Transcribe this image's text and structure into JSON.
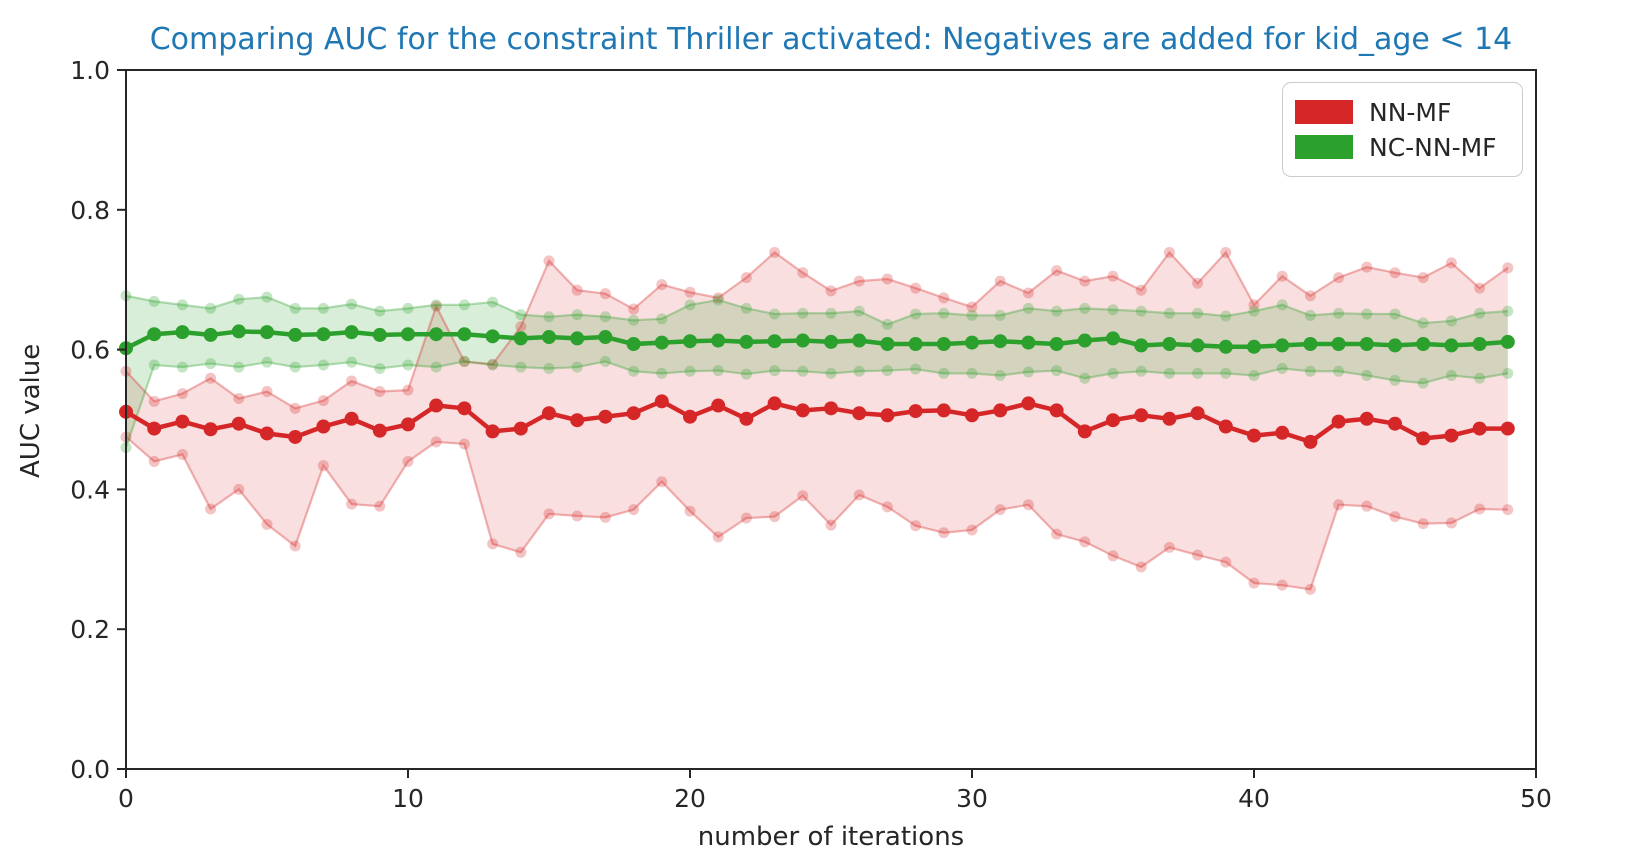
{
  "chart_data": {
    "type": "line",
    "title": "Comparing AUC for the constraint Thriller activated: Negatives are added for kid_age < 14",
    "title_color": "#1f77b4",
    "xlabel": "number of iterations",
    "ylabel": "AUC value",
    "xlim": [
      0,
      50
    ],
    "ylim": [
      0.0,
      1.0
    ],
    "xticks": [
      0,
      10,
      20,
      30,
      40,
      50
    ],
    "yticks": [
      0.0,
      0.2,
      0.4,
      0.6,
      0.8,
      1.0
    ],
    "grid": false,
    "axis_color": "#262626",
    "legend": {
      "position": "upper right",
      "entries": [
        "NN-MF",
        "NC-NN-MF"
      ]
    },
    "x": [
      0,
      1,
      2,
      3,
      4,
      5,
      6,
      7,
      8,
      9,
      10,
      11,
      12,
      13,
      14,
      15,
      16,
      17,
      18,
      19,
      20,
      21,
      22,
      23,
      24,
      25,
      26,
      27,
      28,
      29,
      30,
      31,
      32,
      33,
      34,
      35,
      36,
      37,
      38,
      39,
      40,
      41,
      42,
      43,
      44,
      45,
      46,
      47,
      48,
      49
    ],
    "series": [
      {
        "name": "NN-MF",
        "color": "#d62728",
        "band_opacity": 0.15,
        "envelope_opacity": 0.35,
        "values": [
          0.511,
          0.487,
          0.497,
          0.486,
          0.494,
          0.48,
          0.475,
          0.49,
          0.501,
          0.484,
          0.493,
          0.52,
          0.516,
          0.483,
          0.487,
          0.509,
          0.499,
          0.504,
          0.509,
          0.526,
          0.504,
          0.52,
          0.501,
          0.523,
          0.513,
          0.516,
          0.509,
          0.506,
          0.512,
          0.513,
          0.506,
          0.513,
          0.523,
          0.513,
          0.483,
          0.499,
          0.506,
          0.501,
          0.509,
          0.49,
          0.477,
          0.481,
          0.468,
          0.497,
          0.501,
          0.494,
          0.473,
          0.477,
          0.487,
          0.487
        ],
        "upper": [
          0.569,
          0.526,
          0.537,
          0.559,
          0.53,
          0.54,
          0.516,
          0.527,
          0.555,
          0.54,
          0.542,
          0.662,
          0.583,
          0.579,
          0.633,
          0.727,
          0.685,
          0.68,
          0.658,
          0.693,
          0.682,
          0.674,
          0.703,
          0.739,
          0.71,
          0.684,
          0.698,
          0.701,
          0.688,
          0.674,
          0.661,
          0.698,
          0.681,
          0.713,
          0.698,
          0.705,
          0.685,
          0.739,
          0.695,
          0.739,
          0.664,
          0.705,
          0.677,
          0.703,
          0.718,
          0.71,
          0.703,
          0.724,
          0.688,
          0.717
        ],
        "lower": [
          0.475,
          0.44,
          0.45,
          0.372,
          0.4,
          0.35,
          0.319,
          0.434,
          0.379,
          0.376,
          0.44,
          0.468,
          0.465,
          0.322,
          0.31,
          0.365,
          0.362,
          0.36,
          0.371,
          0.411,
          0.369,
          0.332,
          0.359,
          0.361,
          0.391,
          0.349,
          0.392,
          0.375,
          0.348,
          0.338,
          0.342,
          0.371,
          0.378,
          0.336,
          0.325,
          0.305,
          0.289,
          0.317,
          0.306,
          0.296,
          0.266,
          0.263,
          0.257,
          0.378,
          0.376,
          0.361,
          0.351,
          0.352,
          0.372,
          0.371
        ]
      },
      {
        "name": "NC-NN-MF",
        "color": "#2ca02c",
        "band_opacity": 0.18,
        "envelope_opacity": 0.35,
        "values": [
          0.602,
          0.622,
          0.625,
          0.621,
          0.626,
          0.625,
          0.621,
          0.622,
          0.625,
          0.621,
          0.622,
          0.622,
          0.622,
          0.619,
          0.616,
          0.618,
          0.616,
          0.618,
          0.608,
          0.61,
          0.612,
          0.613,
          0.611,
          0.612,
          0.613,
          0.611,
          0.613,
          0.608,
          0.608,
          0.608,
          0.61,
          0.612,
          0.61,
          0.608,
          0.613,
          0.616,
          0.606,
          0.608,
          0.606,
          0.604,
          0.604,
          0.606,
          0.608,
          0.608,
          0.608,
          0.606,
          0.608,
          0.606,
          0.608,
          0.611
        ],
        "upper": [
          0.677,
          0.669,
          0.664,
          0.659,
          0.672,
          0.675,
          0.659,
          0.659,
          0.665,
          0.655,
          0.659,
          0.664,
          0.664,
          0.668,
          0.65,
          0.647,
          0.65,
          0.647,
          0.642,
          0.644,
          0.664,
          0.671,
          0.659,
          0.651,
          0.652,
          0.652,
          0.655,
          0.636,
          0.651,
          0.652,
          0.649,
          0.649,
          0.659,
          0.655,
          0.659,
          0.657,
          0.655,
          0.652,
          0.652,
          0.648,
          0.655,
          0.664,
          0.649,
          0.652,
          0.651,
          0.651,
          0.638,
          0.641,
          0.652,
          0.655
        ],
        "lower": [
          0.46,
          0.578,
          0.575,
          0.58,
          0.575,
          0.582,
          0.575,
          0.578,
          0.582,
          0.573,
          0.578,
          0.575,
          0.583,
          0.578,
          0.575,
          0.573,
          0.575,
          0.583,
          0.569,
          0.566,
          0.569,
          0.57,
          0.565,
          0.57,
          0.569,
          0.566,
          0.569,
          0.57,
          0.572,
          0.566,
          0.566,
          0.563,
          0.568,
          0.57,
          0.559,
          0.566,
          0.569,
          0.566,
          0.566,
          0.566,
          0.563,
          0.573,
          0.569,
          0.569,
          0.563,
          0.556,
          0.552,
          0.563,
          0.559,
          0.566
        ]
      }
    ]
  }
}
